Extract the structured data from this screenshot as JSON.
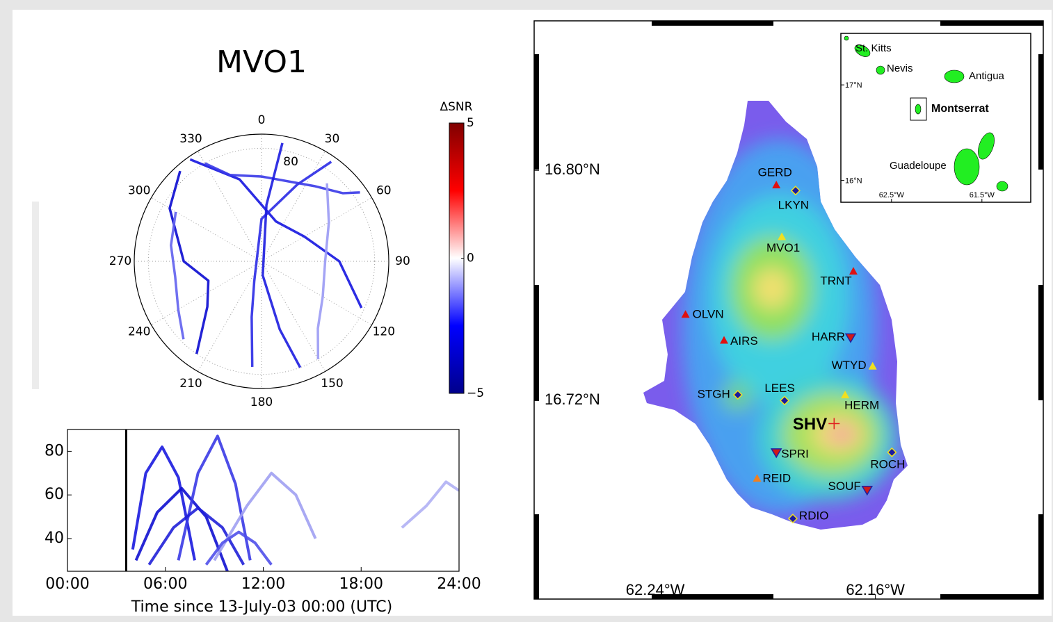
{
  "chart_data": [
    {
      "type": "polar",
      "title": "MVO1",
      "thetaticks": [
        0,
        30,
        60,
        90,
        120,
        150,
        180,
        210,
        240,
        270,
        300,
        330
      ],
      "rlim": [
        0,
        90
      ],
      "rticks": [
        80
      ],
      "series": [
        {
          "color": "#0a0ad0",
          "azimuth": [
            318,
            300,
            270,
            250,
            230,
            215
          ],
          "values": [
            86,
            75,
            55,
            40,
            50,
            80
          ]
        },
        {
          "color": "#1515e0",
          "azimuth": [
            325,
            345,
            20,
            60,
            90,
            115
          ],
          "values": [
            88,
            60,
            30,
            35,
            55,
            78
          ]
        },
        {
          "color": "#2a2ae6",
          "azimuth": [
            35,
            25,
            0,
            200,
            190,
            185
          ],
          "values": [
            86,
            60,
            30,
            15,
            40,
            75
          ]
        },
        {
          "color": "#3838e8",
          "azimuth": [
            330,
            340,
            0,
            35,
            50,
            55
          ],
          "values": [
            80,
            65,
            60,
            65,
            75,
            85
          ]
        },
        {
          "color": "#6060ee",
          "azimuth": [
            300,
            280,
            260,
            240,
            225
          ],
          "values": [
            70,
            65,
            62,
            68,
            78
          ]
        },
        {
          "color": "#9a9af4",
          "azimuth": [
            40,
            60,
            90,
            120,
            140,
            150
          ],
          "values": [
            72,
            55,
            45,
            50,
            62,
            80
          ]
        },
        {
          "color": "#1c1ce0",
          "azimuth": [
            10,
            5,
            175,
            165,
            160
          ],
          "values": [
            85,
            40,
            10,
            50,
            80
          ]
        }
      ]
    },
    {
      "type": "colorbar",
      "label": "ΔSNR",
      "ylim": [
        -5,
        5
      ],
      "yticks": [
        {
          "value": -5,
          "label": "−5"
        },
        0,
        5
      ],
      "colors": [
        "#00008b",
        "#0000ff",
        "#ffffff",
        "#ff0000",
        "#800000"
      ]
    },
    {
      "type": "line",
      "xlabel": "Time since 13-July-03 00:00 (UTC)",
      "xlim": [
        0,
        24
      ],
      "xticks": [
        {
          "value": 0,
          "label": "00:00"
        },
        {
          "value": 6,
          "label": "06:00"
        },
        {
          "value": 12,
          "label": "12:00"
        },
        {
          "value": 18,
          "label": "18:00"
        },
        {
          "value": 24,
          "label": "24:00"
        }
      ],
      "ylim": [
        25,
        90
      ],
      "yticks": [
        40,
        60,
        80
      ],
      "vline": 3.6,
      "series": [
        {
          "color": "#1a1adf",
          "x": [
            4,
            4.8,
            5.8,
            6.8,
            7.8
          ],
          "values": [
            35,
            70,
            82,
            68,
            30
          ]
        },
        {
          "color": "#1010d0",
          "x": [
            4.2,
            5.5,
            7,
            8.5,
            9.8
          ],
          "values": [
            30,
            52,
            63,
            50,
            25
          ]
        },
        {
          "color": "#3a3ae6",
          "x": [
            6.8,
            8,
            9.2,
            10.3,
            11.2
          ],
          "values": [
            30,
            70,
            87,
            65,
            30
          ]
        },
        {
          "color": "#2020d8",
          "x": [
            5,
            6.5,
            8,
            9.5,
            10.8
          ],
          "values": [
            28,
            45,
            54,
            45,
            28
          ]
        },
        {
          "color": "#a0a0f2",
          "x": [
            9,
            11,
            12.5,
            14,
            15.2
          ],
          "values": [
            30,
            55,
            70,
            60,
            40
          ]
        },
        {
          "color": "#5050ea",
          "x": [
            8.5,
            9.5,
            10.5,
            11.5,
            12.5
          ],
          "values": [
            28,
            38,
            43,
            38,
            28
          ]
        },
        {
          "color": "#b0b0f4",
          "x": [
            20.5,
            22,
            23.2,
            24
          ],
          "values": [
            45,
            55,
            66,
            62
          ]
        }
      ]
    },
    {
      "type": "map",
      "xlim": [
        -62.284,
        -62.099
      ],
      "ylim": [
        16.651,
        16.852
      ],
      "xticks": [
        {
          "value": -62.24,
          "label": "62.24°W"
        },
        {
          "value": -62.16,
          "label": "62.16°W"
        }
      ],
      "yticks": [
        {
          "value": 16.8,
          "label": "16.80°N"
        },
        {
          "value": 16.72,
          "label": "16.72°N"
        }
      ],
      "vent": {
        "name": "SHV",
        "lon": -62.175,
        "lat": 16.712,
        "color": "#e02020"
      },
      "stations": [
        {
          "name": "GERD",
          "lon": -62.196,
          "lat": 16.795,
          "marker": "triangle",
          "color": "#e01010"
        },
        {
          "name": "LKYN",
          "lon": -62.189,
          "lat": 16.793,
          "marker": "diamond",
          "color": "#1a1aa0"
        },
        {
          "name": "MVO1",
          "lon": -62.194,
          "lat": 16.777,
          "marker": "triangle",
          "color": "#f0e020"
        },
        {
          "name": "TRNT",
          "lon": -62.168,
          "lat": 16.765,
          "marker": "triangle",
          "color": "#e01010"
        },
        {
          "name": "OLVN",
          "lon": -62.229,
          "lat": 16.75,
          "marker": "triangle",
          "color": "#e01010"
        },
        {
          "name": "AIRS",
          "lon": -62.215,
          "lat": 16.741,
          "marker": "triangle",
          "color": "#e01010"
        },
        {
          "name": "HARR",
          "lon": -62.169,
          "lat": 16.742,
          "marker": "triangle-down",
          "color": "#d01818"
        },
        {
          "name": "WTYD",
          "lon": -62.161,
          "lat": 16.732,
          "marker": "triangle",
          "color": "#f0e020"
        },
        {
          "name": "STGH",
          "lon": -62.21,
          "lat": 16.722,
          "marker": "diamond",
          "color": "#1a1aa0"
        },
        {
          "name": "LEES",
          "lon": -62.193,
          "lat": 16.72,
          "marker": "diamond",
          "color": "#1a1aa0"
        },
        {
          "name": "HERM",
          "lon": -62.171,
          "lat": 16.722,
          "marker": "triangle",
          "color": "#f0e020"
        },
        {
          "name": "SPRI",
          "lon": -62.196,
          "lat": 16.702,
          "marker": "triangle-down",
          "color": "#d01818"
        },
        {
          "name": "ROCH",
          "lon": -62.154,
          "lat": 16.702,
          "marker": "diamond",
          "color": "#1a1aa0"
        },
        {
          "name": "REID",
          "lon": -62.203,
          "lat": 16.693,
          "marker": "triangle",
          "color": "#f08020"
        },
        {
          "name": "SOUF",
          "lon": -62.163,
          "lat": 16.689,
          "marker": "triangle-down",
          "color": "#d01818"
        },
        {
          "name": "RDIO",
          "lon": -62.19,
          "lat": 16.679,
          "marker": "diamond",
          "color": "#1a1aa0"
        }
      ],
      "inset": {
        "labels": [
          "St. Kitts",
          "Nevis",
          "Antigua",
          "Montserrat",
          "Guadeloupe"
        ],
        "xlim": [
          -63.06,
          -60.96
        ],
        "ylim": [
          15.77,
          17.54
        ],
        "xticks": [
          {
            "value": -62.5,
            "label": "62.5°W"
          },
          {
            "value": -61.5,
            "label": "61.5°W"
          }
        ],
        "yticks": [
          {
            "value": 17,
            "label": "17°N"
          },
          {
            "value": 16,
            "label": "16°N"
          }
        ]
      }
    }
  ]
}
